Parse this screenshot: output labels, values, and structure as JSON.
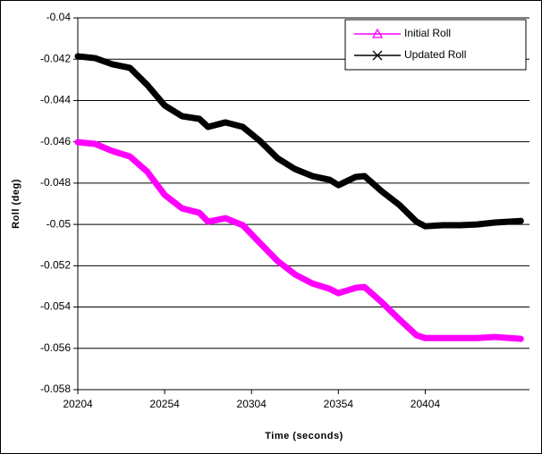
{
  "chart_data": {
    "type": "line",
    "xlabel": "Time (seconds)",
    "ylabel": "Roll (deg)",
    "x": [
      20204,
      20214,
      20224,
      20234,
      20244,
      20254,
      20264,
      20274,
      20279,
      20289,
      20299,
      20309,
      20319,
      20329,
      20339,
      20349,
      20354,
      20364,
      20369,
      20379,
      20389,
      20399,
      20404,
      20414,
      20424,
      20434,
      20444,
      20459
    ],
    "series": [
      {
        "name": "Initial Roll",
        "color": "#ff00ff",
        "marker": "triangle",
        "values": [
          -0.04602,
          -0.0461,
          -0.04645,
          -0.04671,
          -0.04745,
          -0.04857,
          -0.04922,
          -0.04944,
          -0.04987,
          -0.0497,
          -0.05004,
          -0.05091,
          -0.05177,
          -0.05242,
          -0.05286,
          -0.05312,
          -0.05333,
          -0.05307,
          -0.05303,
          -0.05377,
          -0.05459,
          -0.05537,
          -0.0555,
          -0.0555,
          -0.0555,
          -0.0555,
          -0.05545,
          -0.05554
        ]
      },
      {
        "name": "Updated Roll",
        "color": "#000000",
        "marker": "x",
        "values": [
          -0.04186,
          -0.04195,
          -0.04225,
          -0.04242,
          -0.04325,
          -0.04424,
          -0.04476,
          -0.04489,
          -0.04528,
          -0.04506,
          -0.04528,
          -0.04597,
          -0.0468,
          -0.04732,
          -0.04766,
          -0.04784,
          -0.0481,
          -0.0477,
          -0.04766,
          -0.0484,
          -0.04905,
          -0.04987,
          -0.05009,
          -0.05004,
          -0.05004,
          -0.05,
          -0.04991,
          -0.04983
        ]
      }
    ],
    "xlim": [
      20204,
      20464
    ],
    "xticks": [
      20204,
      20254,
      20304,
      20354,
      20404
    ],
    "ylim": [
      -0.058,
      -0.04
    ],
    "yticks": [
      -0.058,
      -0.056,
      -0.054,
      -0.052,
      -0.05,
      -0.048,
      -0.046,
      -0.044,
      -0.042,
      -0.04
    ],
    "grid": true,
    "legend": "upper right"
  }
}
